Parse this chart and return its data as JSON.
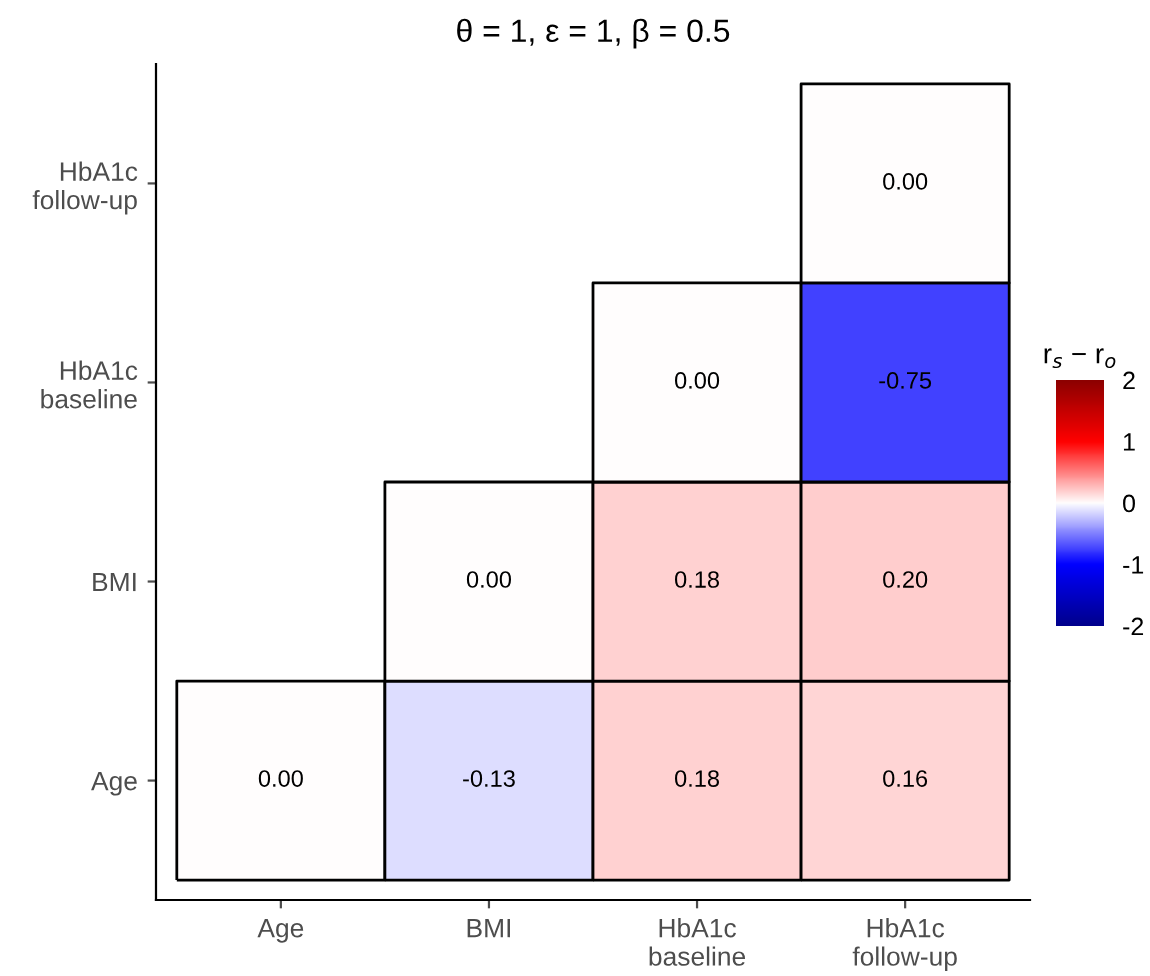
{
  "chart_data": {
    "type": "heatmap",
    "title": "θ = 1, ε = 1, β = 0.5",
    "categories": [
      "Age",
      "BMI",
      "HbA1c\nbaseline",
      "HbA1c\nfollow-up"
    ],
    "y_categories": [
      "HbA1c\nfollow-up",
      "HbA1c\nbaseline",
      "BMI",
      "Age"
    ],
    "cells": [
      [
        null,
        null,
        null,
        0.0
      ],
      [
        null,
        null,
        0.0,
        -0.75
      ],
      [
        null,
        0.0,
        0.18,
        0.2
      ],
      [
        0.0,
        -0.13,
        0.18,
        0.16
      ]
    ],
    "cell_labels": [
      [
        null,
        null,
        null,
        "0.00"
      ],
      [
        null,
        null,
        "0.00",
        "-0.75"
      ],
      [
        null,
        "0.00",
        "0.18",
        "0.20"
      ],
      [
        "0.00",
        "-0.13",
        "0.18",
        "0.16"
      ]
    ],
    "clabel": "r$_{s}$ − r$_{o}$",
    "clim": [
      -2,
      2
    ],
    "cticks": [
      {
        "value": 2,
        "label": "2"
      },
      {
        "value": 1,
        "label": "1"
      },
      {
        "value": 0,
        "label": "0"
      },
      {
        "value": -1,
        "label": "-1"
      },
      {
        "value": -2,
        "label": "-2"
      }
    ],
    "colors": [
      "#00008b",
      "#0000ff",
      "#ffffff",
      "#ff0000",
      "#8b0000"
    ]
  }
}
